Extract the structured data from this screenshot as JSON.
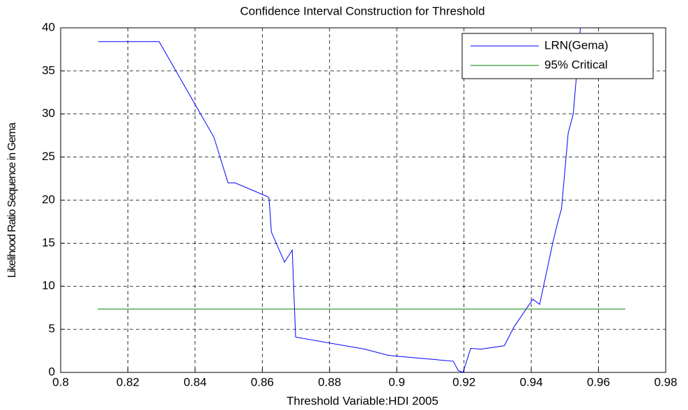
{
  "chart_data": {
    "type": "line",
    "title": "Confidence Interval Construction for Threshold",
    "x_label": "Threshold Variable:HDI 2005",
    "y_label": "Likelihood Ratio Sequence in Gema",
    "series": [
      {
        "name": "LRN(Gema)",
        "color": "#0000ff",
        "x": [
          0.8112,
          0.8293,
          0.8456,
          0.8498,
          0.8519,
          0.8616,
          0.862,
          0.8627,
          0.8666,
          0.8689,
          0.8699,
          0.8905,
          0.8973,
          0.8996,
          0.9168,
          0.9183,
          0.9197,
          0.922,
          0.925,
          0.932,
          0.9349,
          0.9405,
          0.9425,
          0.9465,
          0.948,
          0.949,
          0.951,
          0.9525,
          0.954,
          0.9546
        ],
        "values": [
          38.4,
          38.4,
          27.3,
          22,
          22,
          20.4,
          20.2,
          16.3,
          12.8,
          14.2,
          4.1,
          2.7,
          2.0,
          1.9,
          1.3,
          0.2,
          0,
          2.8,
          2.7,
          3.1,
          5.3,
          8.5,
          7.9,
          15.2,
          17.6,
          19,
          27.8,
          30,
          37,
          40
        ]
      },
      {
        "name": "95% Critical",
        "color": "#008000",
        "x": [
          0.811,
          0.968
        ],
        "values": [
          7.35,
          7.35
        ]
      }
    ],
    "xlim": [
      0.8,
      0.98
    ],
    "xticks": [
      {
        "value": 0.8,
        "label": "0.8"
      },
      0.82,
      0.84,
      0.86,
      0.88,
      {
        "value": 0.9,
        "label": "0.9"
      },
      0.92,
      0.94,
      0.96,
      0.98
    ],
    "ylim": [
      0,
      40
    ],
    "yticks": [
      0,
      5,
      10,
      15,
      20,
      25,
      30,
      35,
      40
    ],
    "grid": true,
    "legend": "top-right"
  }
}
